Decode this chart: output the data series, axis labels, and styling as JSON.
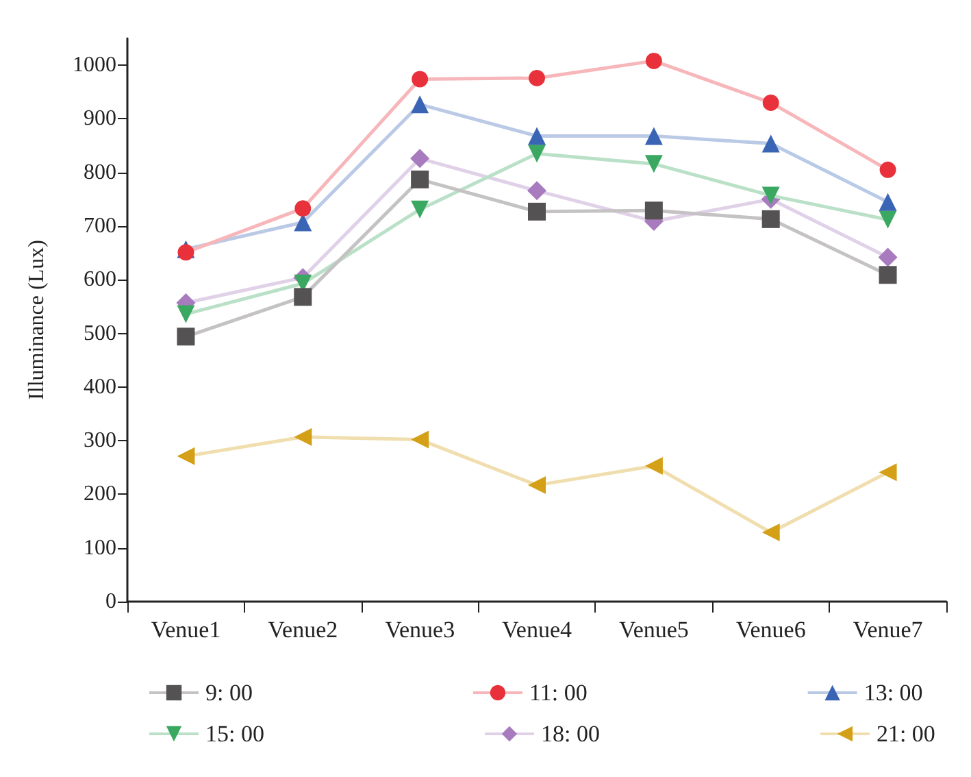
{
  "chart_data": {
    "type": "line",
    "ylabel": "Illuminance (Lux)",
    "categories": [
      "Venue1",
      "Venue2",
      "Venue3",
      "Venue4",
      "Venue5",
      "Venue6",
      "Venue7"
    ],
    "series": [
      {
        "name": "9: 00",
        "color": "#555253",
        "marker": "square",
        "values": [
          494,
          568,
          787,
          727,
          729,
          713,
          609
        ]
      },
      {
        "name": "11: 00",
        "color": "#e8313a",
        "marker": "circle",
        "values": [
          651,
          733,
          974,
          976,
          1008,
          930,
          805
        ]
      },
      {
        "name": "13: 00",
        "color": "#3a64b4",
        "marker": "triangle",
        "values": [
          657,
          707,
          927,
          868,
          868,
          854,
          745
        ]
      },
      {
        "name": "15: 00",
        "color": "#3aa860",
        "marker": "triangle-down",
        "values": [
          536,
          593,
          731,
          835,
          816,
          757,
          712
        ]
      },
      {
        "name": "18: 00",
        "color": "#a77bbd",
        "marker": "diamond",
        "values": [
          557,
          604,
          826,
          766,
          709,
          750,
          642
        ]
      },
      {
        "name": "21: 00",
        "color": "#d4a017",
        "marker": "triangle-left",
        "values": [
          271,
          307,
          302,
          217,
          253,
          129,
          241
        ]
      }
    ],
    "ylim": [
      0,
      1050
    ],
    "yticks": [
      0,
      100,
      200,
      300,
      400,
      500,
      600,
      700,
      800,
      900,
      1000
    ],
    "grid": false,
    "legend": "bottom",
    "line_style": "solid"
  }
}
